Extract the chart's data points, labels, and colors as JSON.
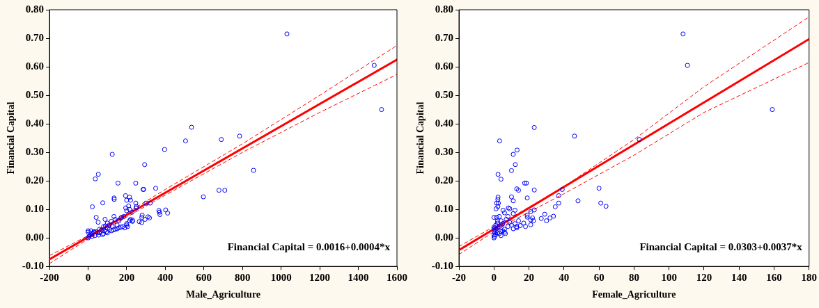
{
  "chart_data": [
    {
      "type": "scatter",
      "xlabel": "Male_Agriculture",
      "ylabel": "Financial Capital",
      "xlim": [
        -200,
        1600
      ],
      "ylim": [
        -0.1,
        0.8
      ],
      "xticks": [
        -200,
        0,
        200,
        400,
        600,
        800,
        1000,
        1200,
        1400,
        1600
      ],
      "yticks": [
        {
          "value": -0.1,
          "label": "-0.10"
        },
        {
          "value": 0,
          "label": "0.00"
        },
        {
          "value": 0.1,
          "label": "0.10"
        },
        {
          "value": 0.2,
          "label": "0.20"
        },
        {
          "value": 0.3,
          "label": "0.30"
        },
        {
          "value": 0.4,
          "label": "0.40"
        },
        {
          "value": 0.5,
          "label": "0.50"
        },
        {
          "value": 0.6,
          "label": "0.60"
        },
        {
          "value": 0.7,
          "label": "0.70"
        },
        {
          "value": 0.8,
          "label": "0.80"
        }
      ],
      "grid": false,
      "legend": false,
      "annotations": [
        "Financial Capital = 0.0016+0.0004*x"
      ],
      "series": [
        {
          "type": "scatter",
          "color": "#0000ff",
          "marker": "circle",
          "x": [
            1030,
            1482,
            1520,
            536,
            505,
            690,
            785,
            396,
            125,
            293,
            857,
            53,
            37,
            155,
            247,
            288,
            285,
            350,
            678,
            708,
            597,
            22,
            76,
            135,
            135,
            194,
            215,
            200,
            220,
            247,
            300,
            322,
            42,
            52,
            88,
            134,
            367,
            402,
            412,
            372,
            370,
            310,
            318,
            280,
            278,
            295,
            265,
            278,
            230,
            250,
            250,
            210,
            195,
            200,
            215,
            228,
            174,
            185,
            170,
            160,
            140,
            120,
            100,
            110,
            80,
            90,
            60,
            70,
            40,
            30,
            20,
            10,
            5,
            0,
            0,
            0,
            15,
            30,
            50,
            80,
            100,
            120,
            140,
            160,
            180,
            200,
            205,
            190,
            170,
            150,
            130,
            110,
            95,
            75,
            55,
            35,
            20,
            200,
            215,
            220,
            230,
            150,
            125,
            100,
            85,
            60
          ],
          "values": [
            0.715,
            0.605,
            0.45,
            0.388,
            0.34,
            0.345,
            0.357,
            0.31,
            0.293,
            0.257,
            0.237,
            0.223,
            0.207,
            0.192,
            0.192,
            0.17,
            0.17,
            0.174,
            0.167,
            0.167,
            0.144,
            0.109,
            0.123,
            0.14,
            0.135,
            0.148,
            0.143,
            0.132,
            0.132,
            0.122,
            0.122,
            0.122,
            0.072,
            0.055,
            0.065,
            0.075,
            0.096,
            0.098,
            0.087,
            0.082,
            0.09,
            0.074,
            0.07,
            0.08,
            0.072,
            0.065,
            0.057,
            0.054,
            0.058,
            0.105,
            0.11,
            0.112,
            0.105,
            0.095,
            0.1,
            0.09,
            0.072,
            0.075,
            0.07,
            0.06,
            0.065,
            0.058,
            0.052,
            0.045,
            0.04,
            0.042,
            0.03,
            0.028,
            0.022,
            0.02,
            0.015,
            0.01,
            0.005,
            0.0,
            0.025,
            0.02,
            0.025,
            0.022,
            0.018,
            0.015,
            0.018,
            0.025,
            0.03,
            0.035,
            0.04,
            0.045,
            0.04,
            0.035,
            0.038,
            0.032,
            0.028,
            0.03,
            0.022,
            0.012,
            0.01,
            0.008,
            0.005,
            0.05,
            0.06,
            0.065,
            0.062,
            0.045,
            0.04,
            0.035,
            0.025,
            0.018
          ]
        },
        {
          "type": "line",
          "color": "#ff0000",
          "marker": "none",
          "line_style": "solid",
          "x": [
            -200,
            1600
          ],
          "values": [
            -0.075,
            0.625
          ]
        },
        {
          "type": "line",
          "color": "#ff0000",
          "marker": "none",
          "line_style": "dashed",
          "x": [
            -200,
            0,
            150,
            400,
            800,
            1200,
            1600
          ],
          "values": [
            -0.062,
            0.008,
            0.066,
            0.17,
            0.33,
            0.5,
            0.675
          ]
        },
        {
          "type": "line",
          "color": "#ff0000",
          "marker": "none",
          "line_style": "dashed",
          "x": [
            -200,
            0,
            150,
            400,
            800,
            1200,
            1600
          ],
          "values": [
            -0.09,
            -0.004,
            0.054,
            0.15,
            0.3,
            0.44,
            0.573
          ]
        }
      ]
    },
    {
      "type": "scatter",
      "xlabel": "Female_Agriculture",
      "ylabel": "Financial Capital",
      "xlim": [
        -20,
        180
      ],
      "ylim": [
        -0.1,
        0.8
      ],
      "xticks": [
        -20,
        0,
        20,
        40,
        60,
        80,
        100,
        120,
        140,
        160,
        180
      ],
      "yticks": [
        {
          "value": -0.1,
          "label": "-0.10"
        },
        {
          "value": 0,
          "label": "0.00"
        },
        {
          "value": 0.1,
          "label": "0.10"
        },
        {
          "value": 0.2,
          "label": "0.20"
        },
        {
          "value": 0.3,
          "label": "0.30"
        },
        {
          "value": 0.4,
          "label": "0.40"
        },
        {
          "value": 0.5,
          "label": "0.50"
        },
        {
          "value": 0.6,
          "label": "0.60"
        },
        {
          "value": 0.7,
          "label": "0.70"
        },
        {
          "value": 0.8,
          "label": "0.80"
        }
      ],
      "grid": false,
      "legend": false,
      "annotations": [
        "Financial Capital = 0.0303+0.0037*x"
      ],
      "series": [
        {
          "type": "scatter",
          "color": "#0000ff",
          "marker": "circle",
          "x": [
            108,
            110.5,
            159,
            23,
            46,
            3.2,
            83,
            13.2,
            11,
            12.2,
            10,
            2.3,
            4,
            17.5,
            18.5,
            13,
            14,
            23,
            39,
            60,
            37,
            10,
            2.3,
            2.2,
            11,
            19,
            48,
            37,
            61,
            64,
            35,
            1.5,
            2.5,
            2.2,
            1.2,
            23,
            5.2,
            8.2,
            9,
            12,
            6,
            21,
            19,
            19,
            22,
            21,
            22.5,
            29,
            27,
            32,
            34,
            30,
            17,
            18,
            21,
            0,
            1.5,
            3,
            14,
            15,
            13,
            11,
            8,
            7,
            9,
            5,
            4,
            3,
            2,
            1,
            0.5,
            0,
            0,
            0.3,
            1,
            2,
            3,
            4,
            5,
            6,
            6.5,
            4,
            0,
            0,
            1,
            2,
            6,
            10,
            12,
            13,
            8,
            11,
            4,
            2,
            0.5
          ],
          "values": [
            0.715,
            0.605,
            0.45,
            0.387,
            0.357,
            0.34,
            0.345,
            0.308,
            0.293,
            0.257,
            0.236,
            0.223,
            0.206,
            0.192,
            0.192,
            0.172,
            0.167,
            0.168,
            0.17,
            0.174,
            0.148,
            0.144,
            0.143,
            0.135,
            0.13,
            0.14,
            0.13,
            0.122,
            0.122,
            0.111,
            0.109,
            0.122,
            0.122,
            0.11,
            0.102,
            0.098,
            0.097,
            0.105,
            0.102,
            0.097,
            0.088,
            0.092,
            0.08,
            0.073,
            0.07,
            0.063,
            0.06,
            0.083,
            0.068,
            0.07,
            0.076,
            0.06,
            0.052,
            0.04,
            0.046,
            0.072,
            0.072,
            0.075,
            0.06,
            0.043,
            0.035,
            0.032,
            0.04,
            0.065,
            0.055,
            0.05,
            0.045,
            0.04,
            0.035,
            0.03,
            0.02,
            0.01,
            0.0,
            0.005,
            0.012,
            0.018,
            0.015,
            0.022,
            0.025,
            0.02,
            0.015,
            0.008,
            0.038,
            0.028,
            0.045,
            0.052,
            0.03,
            0.045,
            0.05,
            0.04,
            0.075,
            0.085,
            0.06,
            0.06,
            0.035
          ]
        },
        {
          "type": "line",
          "color": "#ff0000",
          "marker": "none",
          "line_style": "solid",
          "x": [
            -20,
            180
          ],
          "values": [
            -0.043,
            0.697
          ]
        },
        {
          "type": "line",
          "color": "#ff0000",
          "marker": "none",
          "line_style": "dashed",
          "x": [
            -20,
            0,
            10,
            40,
            80,
            120,
            180
          ],
          "values": [
            -0.03,
            0.04,
            0.072,
            0.18,
            0.345,
            0.53,
            0.775
          ]
        },
        {
          "type": "line",
          "color": "#ff0000",
          "marker": "none",
          "line_style": "dashed",
          "x": [
            -20,
            0,
            10,
            40,
            80,
            120,
            180
          ],
          "values": [
            -0.058,
            0.022,
            0.058,
            0.155,
            0.29,
            0.44,
            0.615
          ]
        }
      ]
    }
  ]
}
